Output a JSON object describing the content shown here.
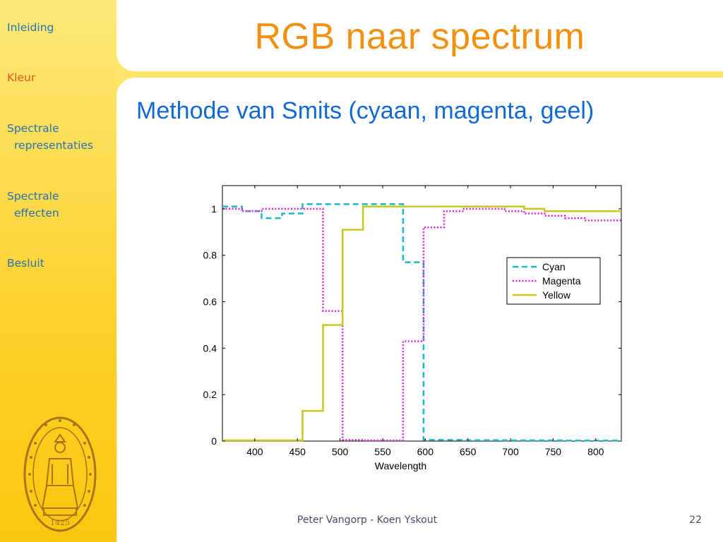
{
  "sidebar": {
    "items": [
      {
        "line1": "Inleiding",
        "line2": ""
      },
      {
        "line1": "Kleur",
        "line2": ""
      },
      {
        "line1": "Spectrale",
        "line2": "representaties"
      },
      {
        "line1": "Spectrale",
        "line2": "effecten"
      },
      {
        "line1": "Besluit",
        "line2": ""
      }
    ],
    "active_index": 1,
    "seal_year": "1425"
  },
  "slide": {
    "title": "RGB naar spectrum",
    "subtitle": "Methode van Smits (cyaan, magenta, geel)"
  },
  "footer": {
    "authors": "Peter Vangorp - Koen Yskout",
    "page_number": "22"
  },
  "colors": {
    "title": "#f29010",
    "subtitle": "#1168d6",
    "nav": "#2a6fb8",
    "nav_active": "#e8541a",
    "sidebar": "#fcd12a"
  },
  "chart_data": {
    "type": "line",
    "title": "",
    "xlabel": "Wavelength",
    "ylabel": "",
    "xlim": [
      362,
      830
    ],
    "ylim": [
      0,
      1.1
    ],
    "xticks": [
      400,
      450,
      500,
      550,
      600,
      650,
      700,
      750,
      800
    ],
    "yticks": [
      0,
      0.2,
      0.4,
      0.6,
      0.8,
      1
    ],
    "ytick_labels": [
      "0",
      "0.2",
      "0.4",
      "0.6",
      "0.8",
      "1"
    ],
    "grid": false,
    "legend_position": "right",
    "series": [
      {
        "name": "Cyan",
        "color": "#1ab8c8",
        "style": "dashed",
        "x": [
          362,
          385,
          385,
          408,
          408,
          432,
          432,
          456,
          456,
          480,
          480,
          503,
          503,
          527,
          527,
          551,
          551,
          574,
          574,
          598,
          598,
          622,
          622,
          645,
          645,
          669,
          669,
          693,
          693,
          716,
          716,
          740,
          740,
          764,
          764,
          787,
          787,
          811,
          811,
          830
        ],
        "y": [
          1.01,
          1.01,
          0.99,
          0.99,
          0.96,
          0.96,
          0.98,
          0.98,
          1.02,
          1.02,
          1.02,
          1.02,
          1.02,
          1.02,
          1.02,
          1.02,
          1.02,
          1.02,
          0.77,
          0.77,
          0.005,
          0.005,
          0.005,
          0.005,
          0.004,
          0.004,
          0.004,
          0.004,
          0.003,
          0.003,
          0.003,
          0.003,
          0.003,
          0.003,
          0.002,
          0.002,
          0.002,
          0.002,
          0.002,
          0.002
        ]
      },
      {
        "name": "Magenta",
        "color": "#e020e0",
        "style": "dotted",
        "x": [
          362,
          385,
          385,
          408,
          408,
          432,
          432,
          456,
          456,
          480,
          480,
          503,
          503,
          527,
          527,
          551,
          551,
          574,
          574,
          598,
          598,
          622,
          622,
          645,
          645,
          669,
          669,
          693,
          693,
          716,
          716,
          740,
          740,
          764,
          764,
          787,
          787,
          811,
          811,
          830
        ],
        "y": [
          1.0,
          1.0,
          0.99,
          0.99,
          1.0,
          1.0,
          1.0,
          1.0,
          1.0,
          1.0,
          0.56,
          0.56,
          0.005,
          0.005,
          0.003,
          0.003,
          0.003,
          0.003,
          0.43,
          0.43,
          0.92,
          0.92,
          0.99,
          0.99,
          1.0,
          1.0,
          1.0,
          1.0,
          0.99,
          0.99,
          0.98,
          0.98,
          0.97,
          0.97,
          0.96,
          0.96,
          0.95,
          0.95,
          0.95,
          0.95
        ]
      },
      {
        "name": "Yellow",
        "color": "#c8c820",
        "style": "solid",
        "x": [
          362,
          385,
          385,
          408,
          408,
          432,
          432,
          456,
          456,
          480,
          480,
          503,
          503,
          527,
          527,
          551,
          551,
          574,
          574,
          598,
          598,
          622,
          622,
          645,
          645,
          669,
          669,
          693,
          693,
          716,
          716,
          740,
          740,
          764,
          764,
          787,
          787,
          811,
          811,
          830
        ],
        "y": [
          0.003,
          0.003,
          0.003,
          0.003,
          0.003,
          0.003,
          0.003,
          0.003,
          0.13,
          0.13,
          0.5,
          0.5,
          0.91,
          0.91,
          1.01,
          1.01,
          1.01,
          1.01,
          1.01,
          1.01,
          1.01,
          1.01,
          1.01,
          1.01,
          1.01,
          1.01,
          1.01,
          1.01,
          1.01,
          1.01,
          1.0,
          1.0,
          0.99,
          0.99,
          0.99,
          0.99,
          0.99,
          0.99,
          0.99,
          0.99
        ]
      }
    ]
  }
}
